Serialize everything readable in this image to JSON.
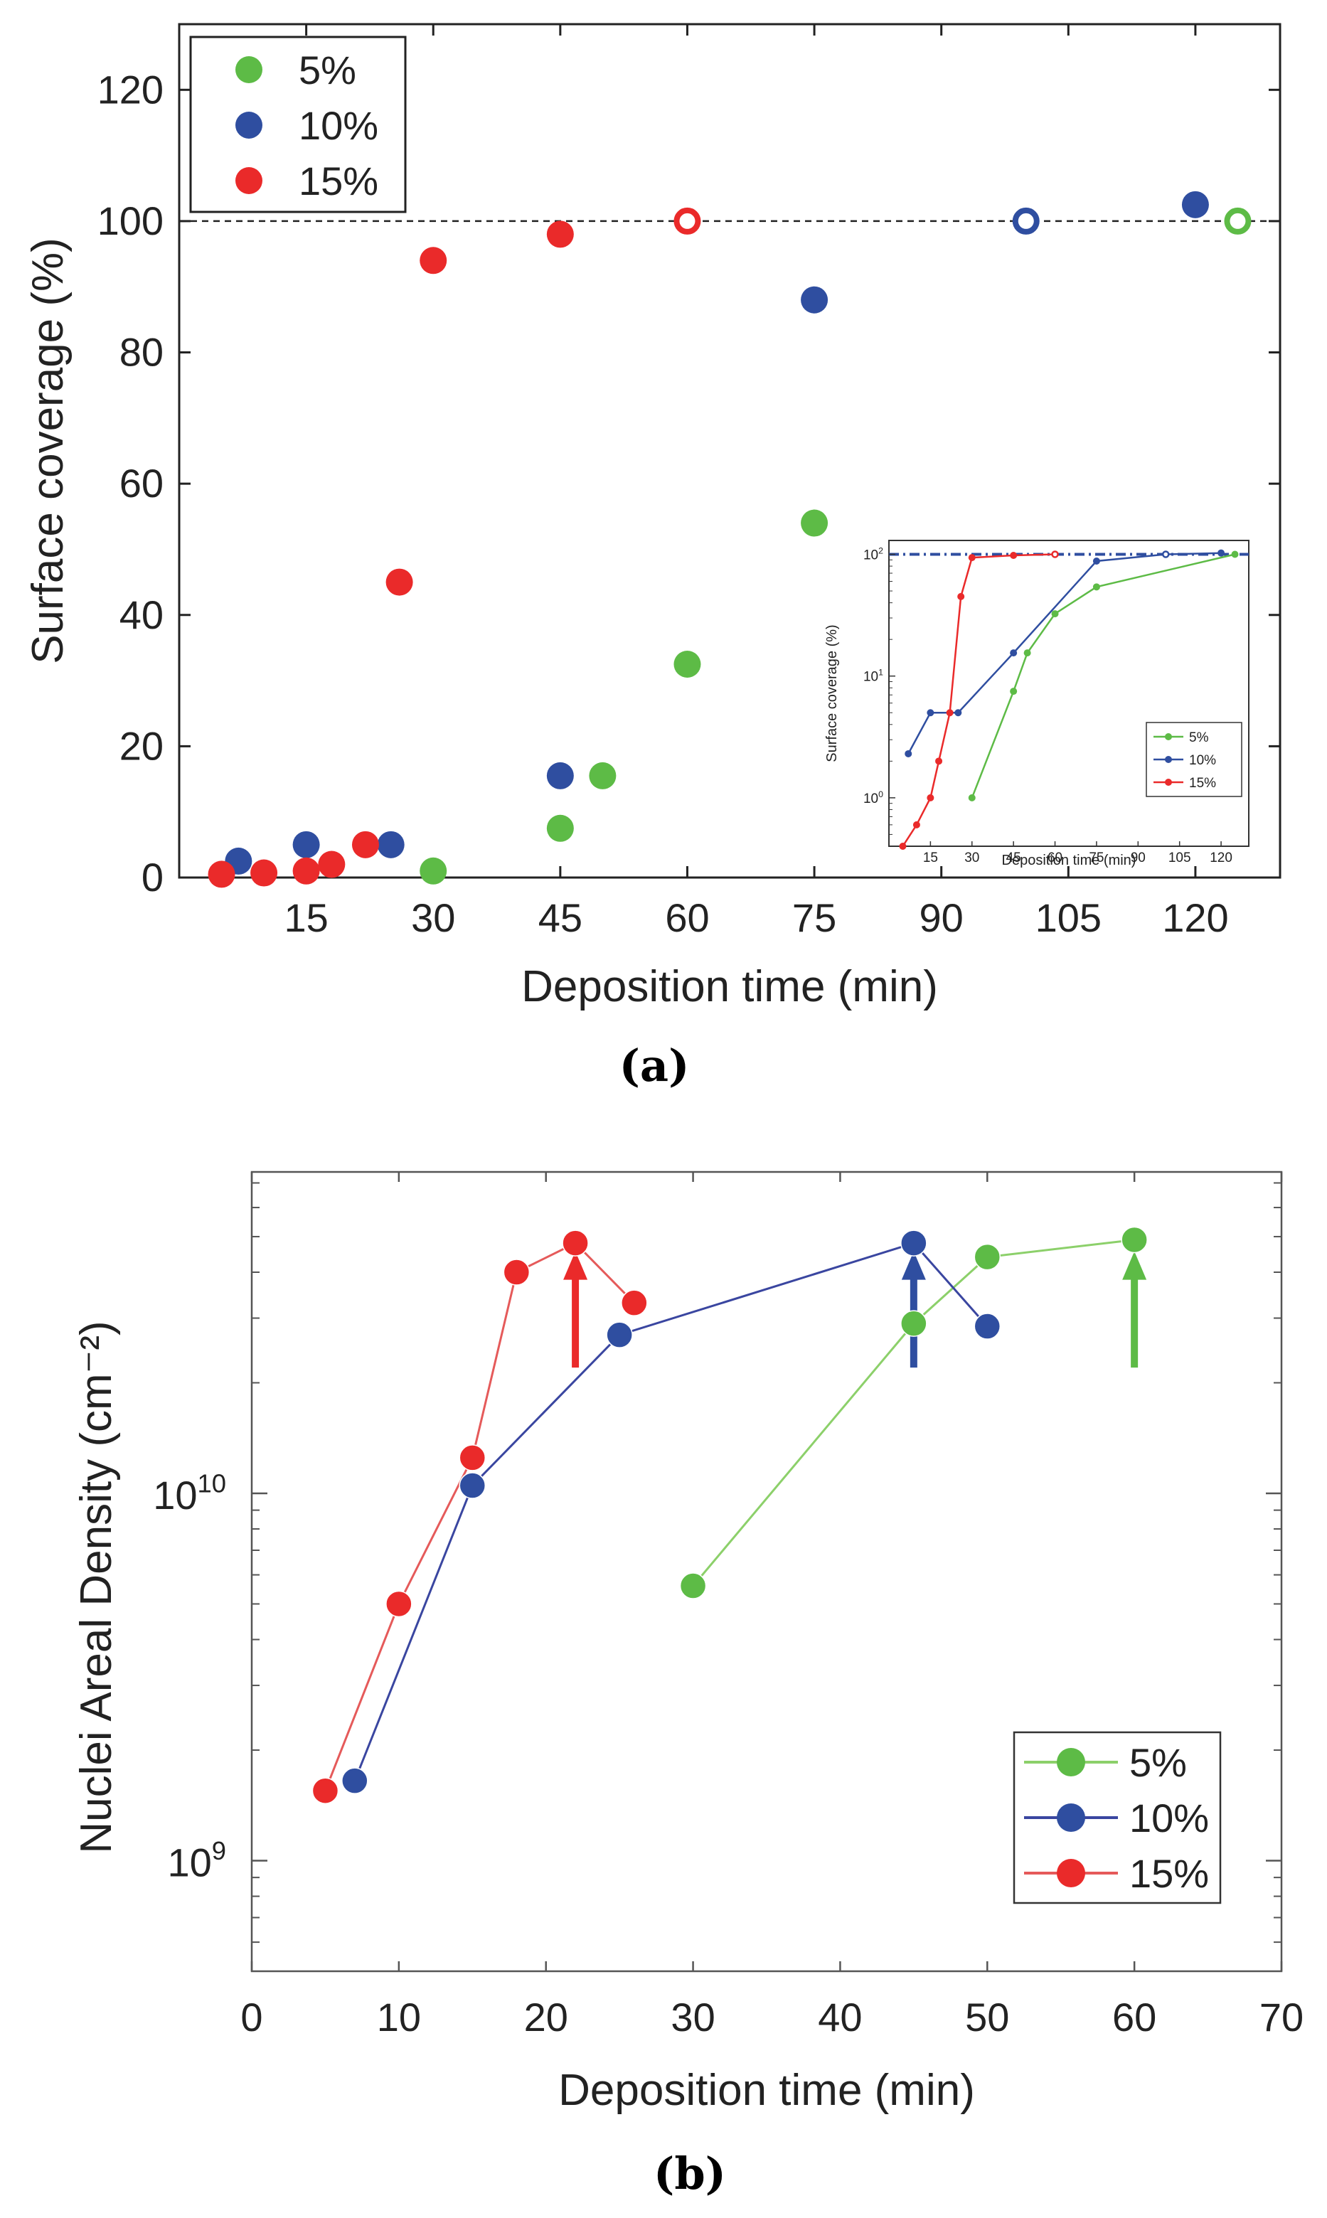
{
  "chart_data": [
    {
      "id": "a",
      "type": "scatter",
      "panel_label": "(a)",
      "xlabel": "Deposition time (min)",
      "ylabel": "Surface coverage (%)",
      "xlim": [
        0,
        130
      ],
      "ylim": [
        0,
        130
      ],
      "xticks": [
        15,
        30,
        45,
        60,
        75,
        90,
        105,
        120
      ],
      "yticks": [
        0,
        20,
        40,
        60,
        80,
        100,
        120
      ],
      "reference_line": {
        "y": 100,
        "style": "dashed"
      },
      "legend_position": "top-left",
      "series": [
        {
          "name": "5%",
          "color": "#5dbb46",
          "points": [
            [
              30,
              1
            ],
            [
              45,
              7.5
            ],
            [
              50,
              15.5
            ],
            [
              60,
              32.5
            ],
            [
              75,
              54
            ],
            [
              125,
              100,
              "open"
            ]
          ]
        },
        {
          "name": "10%",
          "color": "#2f4ea0",
          "points": [
            [
              7,
              2.5
            ],
            [
              15,
              5
            ],
            [
              25,
              5
            ],
            [
              45,
              15.5
            ],
            [
              75,
              88
            ],
            [
              100,
              100,
              "open"
            ],
            [
              120,
              102.5
            ]
          ]
        },
        {
          "name": "15%",
          "color": "#ea2a2a",
          "points": [
            [
              5,
              0.5
            ],
            [
              10,
              0.7
            ],
            [
              15,
              1
            ],
            [
              18,
              2
            ],
            [
              22,
              5
            ],
            [
              26,
              45
            ],
            [
              30,
              94
            ],
            [
              45,
              98
            ],
            [
              60,
              100,
              "open"
            ]
          ]
        }
      ],
      "inset": {
        "type": "line",
        "xlabel": "Deposition time (min)",
        "ylabel": "Surface coverage (%)",
        "xlim": [
          0,
          130
        ],
        "ylog": true,
        "ylim": [
          0.4,
          130
        ],
        "xticks": [
          15,
          30,
          45,
          60,
          75,
          90,
          105,
          120
        ],
        "yticks_labels": [
          "10^0",
          "10^1",
          "10^2"
        ],
        "reference_line": {
          "y": 100,
          "style": "dash-dot"
        },
        "legend_position": "bottom-right",
        "series": [
          {
            "name": "5%",
            "color": "#5dbb46",
            "points": [
              [
                30,
                1
              ],
              [
                45,
                7.5
              ],
              [
                50,
                15.5
              ],
              [
                60,
                32.5
              ],
              [
                75,
                54
              ],
              [
                125,
                100
              ]
            ]
          },
          {
            "name": "10%",
            "color": "#2f4ea0",
            "points": [
              [
                7,
                2.3
              ],
              [
                15,
                5
              ],
              [
                25,
                5
              ],
              [
                45,
                15.5
              ],
              [
                75,
                88
              ],
              [
                100,
                100,
                "open"
              ],
              [
                120,
                102.5
              ]
            ]
          },
          {
            "name": "15%",
            "color": "#ea2a2a",
            "points": [
              [
                5,
                0.4
              ],
              [
                10,
                0.6
              ],
              [
                15,
                1
              ],
              [
                18,
                2
              ],
              [
                22,
                5
              ],
              [
                26,
                45
              ],
              [
                30,
                94
              ],
              [
                45,
                98
              ],
              [
                60,
                100,
                "open"
              ]
            ]
          }
        ]
      }
    },
    {
      "id": "b",
      "type": "line",
      "panel_label": "(b)",
      "xlabel": "Deposition time (min)",
      "ylabel": "Nuclei Areal Density (cm⁻²)",
      "xlim": [
        0,
        70
      ],
      "ylog": true,
      "ylim": [
        500000000.0,
        75000000000.0
      ],
      "xticks": [
        0,
        10,
        20,
        30,
        40,
        50,
        60,
        70
      ],
      "ytick_labels": [
        "10^9",
        "10^10"
      ],
      "legend_position": "bottom-right",
      "series": [
        {
          "name": "5%",
          "color": "#8cd06a",
          "points": [
            [
              30,
              5600000000.0
            ],
            [
              45,
              29000000000.0
            ],
            [
              50,
              44000000000.0
            ],
            [
              60,
              49000000000.0
            ]
          ]
        },
        {
          "name": "10%",
          "color": "#3a46a0",
          "points": [
            [
              7,
              1650000000.0
            ],
            [
              15,
              10500000000.0
            ],
            [
              25,
              27000000000.0
            ],
            [
              45,
              48000000000.0
            ],
            [
              50,
              28500000000.0
            ]
          ]
        },
        {
          "name": "15%",
          "color": "#e55a5a",
          "points": [
            [
              5,
              1550000000.0
            ],
            [
              10,
              5000000000.0
            ],
            [
              15,
              12500000000.0
            ],
            [
              18,
              40000000000.0
            ],
            [
              22,
              48000000000.0
            ],
            [
              26,
              33000000000.0
            ]
          ]
        }
      ],
      "arrows": [
        {
          "x": 22,
          "color": "#ea2a2a",
          "y_from": 22000000000.0,
          "y_to": 44000000000.0
        },
        {
          "x": 45,
          "color": "#2f4ea0",
          "y_from": 22000000000.0,
          "y_to": 44000000000.0
        },
        {
          "x": 60,
          "color": "#5dbb46",
          "y_from": 22000000000.0,
          "y_to": 44000000000.0
        }
      ]
    }
  ]
}
